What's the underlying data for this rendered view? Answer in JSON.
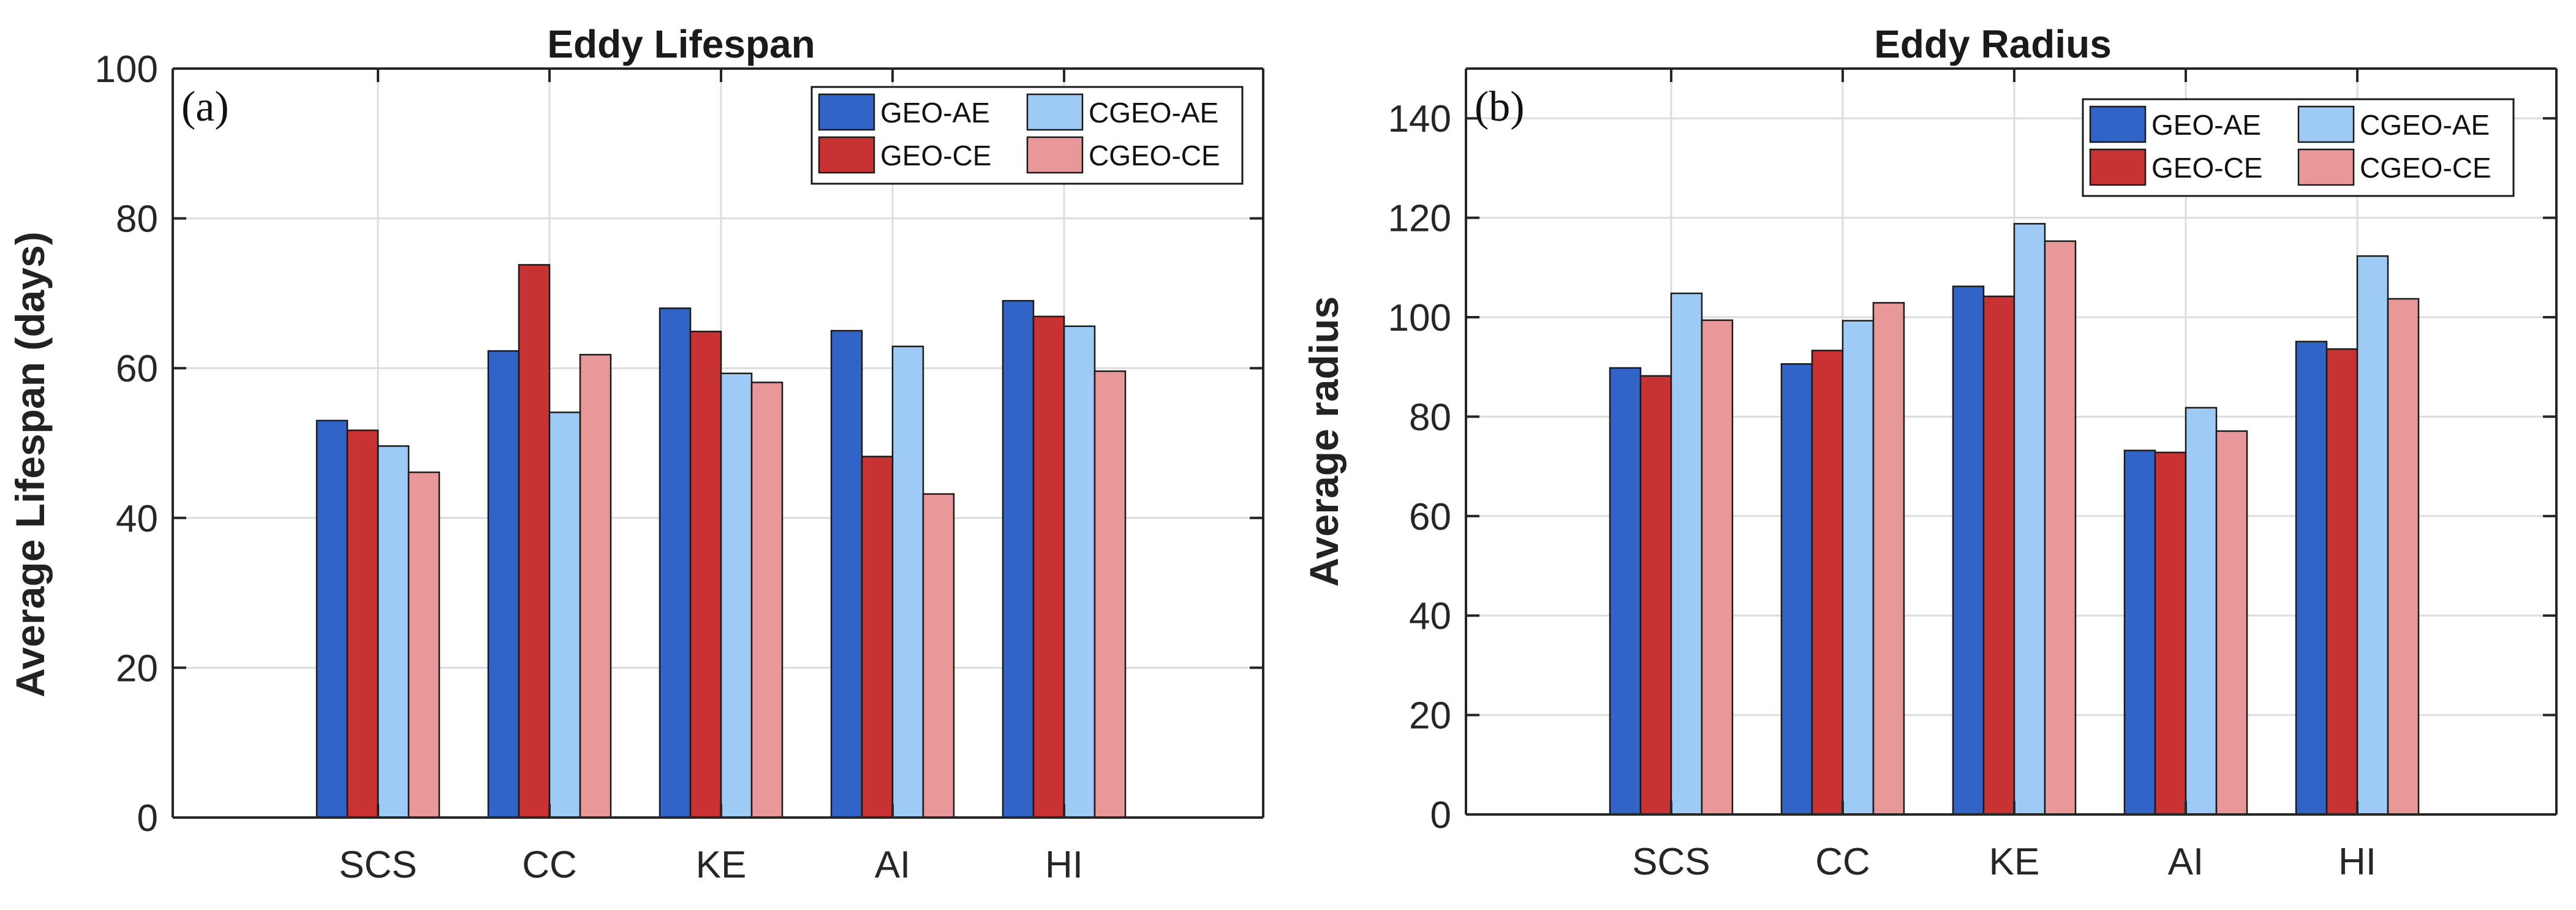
{
  "chart_data": [
    {
      "type": "bar",
      "panel_label": "(a)",
      "title": "Eddy Lifespan",
      "xlabel": "",
      "ylabel": "Average Lifespan (days)",
      "categories": [
        "SCS",
        "CC",
        "KE",
        "AI",
        "HI"
      ],
      "ylim": [
        0,
        100
      ],
      "yticks": [
        0,
        20,
        40,
        60,
        80,
        100
      ],
      "grid": true,
      "legend_position": "top-right",
      "series": [
        {
          "name": "GEO-AE",
          "color": "#3264C8",
          "values": [
            53,
            62.3,
            68,
            65,
            69
          ]
        },
        {
          "name": "GEO-CE",
          "color": "#C93232",
          "values": [
            51.7,
            73.8,
            64.9,
            48.2,
            66.9
          ]
        },
        {
          "name": "CGEO-AE",
          "color": "#9ECBF5",
          "values": [
            49.6,
            54.1,
            59.3,
            62.9,
            65.6
          ]
        },
        {
          "name": "CGEO-CE",
          "color": "#E89898",
          "values": [
            46.1,
            61.8,
            58.1,
            43.2,
            59.6
          ]
        }
      ]
    },
    {
      "type": "bar",
      "panel_label": "(b)",
      "title": "Eddy Radius",
      "xlabel": "",
      "ylabel": "Average radius",
      "categories": [
        "SCS",
        "CC",
        "KE",
        "AI",
        "HI"
      ],
      "ylim": [
        0,
        150
      ],
      "yticks": [
        0,
        20,
        40,
        60,
        80,
        100,
        120,
        140
      ],
      "grid": true,
      "legend_position": "top-right",
      "series": [
        {
          "name": "GEO-AE",
          "color": "#3264C8",
          "values": [
            89.8,
            90.6,
            106.2,
            73.2,
            95.1
          ]
        },
        {
          "name": "GEO-CE",
          "color": "#C93232",
          "values": [
            88.2,
            93.3,
            104.2,
            72.8,
            93.6
          ]
        },
        {
          "name": "CGEO-AE",
          "color": "#9ECBF5",
          "values": [
            104.8,
            99.3,
            118.8,
            81.8,
            112.3
          ]
        },
        {
          "name": "CGEO-CE",
          "color": "#E89898",
          "values": [
            99.4,
            102.9,
            115.3,
            77.1,
            103.7
          ]
        }
      ]
    }
  ]
}
